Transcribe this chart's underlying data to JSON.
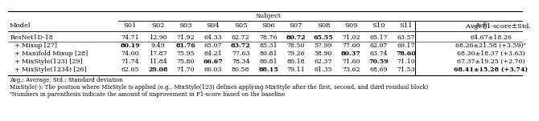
{
  "col_header_top": "Subject",
  "columns": [
    "Model",
    "S01",
    "S02",
    "S03",
    "S04",
    "S05",
    "S06",
    "S07",
    "S08",
    "S09",
    "S10",
    "S11",
    "Avg. F1-score±Std."
  ],
  "rows": [
    {
      "model": "ResNet1D-18",
      "values": [
        "74.71",
        "12.90",
        "71.92",
        "64.33",
        "62.72",
        "78.76",
        "80.72",
        "65.55",
        "71.02",
        "65.17",
        "63.57",
        "64.67±18.26"
      ],
      "bold": [
        false,
        false,
        false,
        false,
        false,
        false,
        true,
        true,
        false,
        false,
        false,
        false
      ]
    },
    {
      "model": "  + Mixup [27]",
      "values": [
        "80.19",
        "9.49",
        "81.76",
        "65.07",
        "83.72",
        "85.31",
        "78.50",
        "57.99",
        "77.60",
        "62.07",
        "69.17",
        "68.26±21.58 (+3.59)ᵃ"
      ],
      "bold": [
        true,
        false,
        true,
        false,
        true,
        false,
        false,
        false,
        false,
        false,
        false,
        false
      ]
    },
    {
      "model": "  + Manifold Mixup [28]",
      "values": [
        "74.00",
        "17.87",
        "75.95",
        "64.21",
        "77.63",
        "80.81",
        "79.26",
        "58.90",
        "80.37",
        "63.74",
        "78.60",
        "68.30±18.37 (+3.63)"
      ],
      "bold": [
        false,
        false,
        false,
        false,
        false,
        false,
        false,
        false,
        true,
        false,
        true,
        false
      ]
    },
    {
      "model": "  + MixStyle(123) [29]",
      "values": [
        "71.74",
        "11.84",
        "75.80",
        "66.67",
        "78.34",
        "80.81",
        "80.18",
        "62.37",
        "71.60",
        "70.59",
        "71.10",
        "67.37±19.25 (+2.70)"
      ],
      "bold": [
        false,
        false,
        false,
        true,
        false,
        false,
        false,
        false,
        false,
        true,
        false,
        false
      ]
    },
    {
      "model": "  + MixStyle(1234) [26]",
      "values": [
        "62.65",
        "29.08",
        "71.70",
        "66.03",
        "80.58",
        "88.15",
        "79.11",
        "61.35",
        "73.62",
        "68.69",
        "71.53",
        "68.41±15.28 (+3.74)"
      ],
      "bold": [
        false,
        true,
        false,
        false,
        false,
        true,
        false,
        false,
        false,
        false,
        false,
        true
      ]
    }
  ],
  "footnotes": [
    "Avg.: Average, Std.: Standard deviation",
    "MixStyle(·): The position where MixStyle is applied (e.g., MixStyle(123) defines applying MixStyle after the first, second, and third residual block)",
    "ᵃNumbers in parenthesis indicate the amount of improvement in F1-score based on the baseline"
  ]
}
